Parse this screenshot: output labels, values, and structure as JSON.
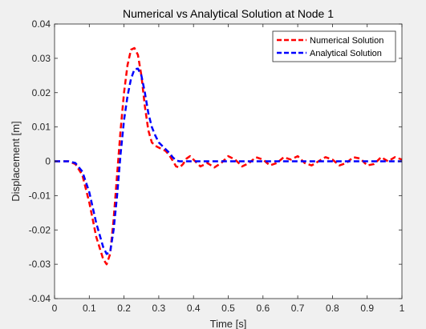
{
  "chart_data": {
    "type": "line",
    "title": "Numerical vs Analytical Solution at Node 1",
    "xlabel": "Time [s]",
    "ylabel": "Displacement [m]",
    "xlim": [
      0,
      1
    ],
    "ylim": [
      -0.04,
      0.04
    ],
    "xticks": [
      0,
      0.1,
      0.2,
      0.3,
      0.4,
      0.5,
      0.6,
      0.7,
      0.8,
      0.9,
      1
    ],
    "xtick_labels": [
      "0",
      "0.1",
      "0.2",
      "0.3",
      "0.4",
      "0.5",
      "0.6",
      "0.7",
      "0.8",
      "0.9",
      "1"
    ],
    "yticks": [
      -0.04,
      -0.03,
      -0.02,
      -0.01,
      0,
      0.01,
      0.02,
      0.03,
      0.04
    ],
    "ytick_labels": [
      "-0.04",
      "-0.03",
      "-0.02",
      "-0.01",
      "0",
      "0.01",
      "0.02",
      "0.03",
      "0.04"
    ],
    "grid": false,
    "legend_position": "top-right",
    "series": [
      {
        "name": "Numerical Solution",
        "color": "#ff0000",
        "line_style": "dashed",
        "x": [
          0,
          0.04,
          0.06,
          0.08,
          0.1,
          0.12,
          0.14,
          0.15,
          0.16,
          0.17,
          0.18,
          0.19,
          0.2,
          0.21,
          0.22,
          0.23,
          0.24,
          0.25,
          0.26,
          0.27,
          0.28,
          0.29,
          0.3,
          0.31,
          0.32,
          0.33,
          0.34,
          0.35,
          0.36,
          0.37,
          0.38,
          0.39,
          0.4,
          0.42,
          0.44,
          0.46,
          0.48,
          0.5,
          0.52,
          0.54,
          0.56,
          0.58,
          0.6,
          0.62,
          0.64,
          0.66,
          0.68,
          0.7,
          0.72,
          0.74,
          0.76,
          0.78,
          0.8,
          0.82,
          0.84,
          0.86,
          0.88,
          0.9,
          0.92,
          0.94,
          0.96,
          0.98,
          1
        ],
        "y": [
          0,
          0,
          -0.0008,
          -0.004,
          -0.012,
          -0.022,
          -0.0285,
          -0.03,
          -0.027,
          -0.017,
          -0.004,
          0.009,
          0.02,
          0.028,
          0.0325,
          0.033,
          0.031,
          0.025,
          0.016,
          0.009,
          0.0055,
          0.0045,
          0.004,
          0.0035,
          0.003,
          0.0018,
          0.0002,
          -0.0015,
          -0.0018,
          -0.0008,
          0.0008,
          0.0015,
          0.0005,
          -0.0015,
          -0.0005,
          -0.0018,
          -0.0005,
          0.0015,
          0.0005,
          -0.0015,
          -0.0005,
          0.0012,
          0.0005,
          -0.0012,
          -0.0005,
          0.0012,
          0.0005,
          0.0015,
          -0.0005,
          -0.0012,
          0,
          0.0012,
          0.0005,
          -0.0012,
          -0.0005,
          0.0012,
          0.0008,
          -0.0012,
          -0.0008,
          0.0012,
          0,
          0.0012,
          0.0005
        ]
      },
      {
        "name": "Analytical Solution",
        "color": "#0000ff",
        "line_style": "dashed",
        "x": [
          0,
          0.04,
          0.06,
          0.08,
          0.1,
          0.12,
          0.14,
          0.15,
          0.16,
          0.17,
          0.18,
          0.19,
          0.2,
          0.21,
          0.22,
          0.23,
          0.24,
          0.25,
          0.26,
          0.27,
          0.28,
          0.29,
          0.3,
          0.31,
          0.32,
          0.33,
          0.34,
          0.35,
          0.36,
          1
        ],
        "y": [
          0,
          0,
          -0.0005,
          -0.003,
          -0.009,
          -0.018,
          -0.025,
          -0.027,
          -0.0265,
          -0.02,
          -0.01,
          0.002,
          0.012,
          0.019,
          0.024,
          0.0268,
          0.027,
          0.025,
          0.02,
          0.014,
          0.01,
          0.0075,
          0.0055,
          0.0045,
          0.0035,
          0.0025,
          0.0012,
          0.0002,
          0,
          0
        ]
      }
    ]
  }
}
